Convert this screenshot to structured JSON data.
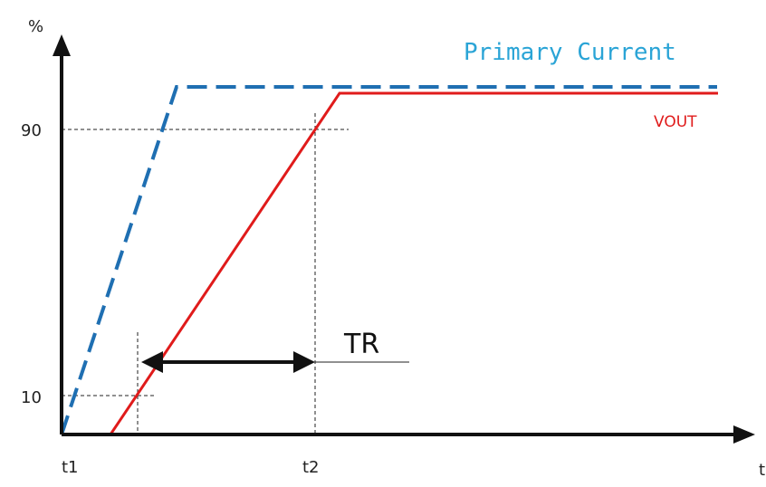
{
  "colors": {
    "primary_current": "#1f6fb2",
    "primary_label": "#2aa4d6",
    "vout": "#e01b1b",
    "axis": "#111111",
    "guide": "#222222"
  },
  "axes": {
    "y_unit": "%",
    "x_unit": "t"
  },
  "ticks": {
    "y_10": "10",
    "y_90": "90",
    "x_t1": "t1",
    "x_t2": "t2"
  },
  "series": {
    "primary_current": "Primary Current",
    "vout": "VOUT"
  },
  "annotation": {
    "tr": "TR"
  }
}
